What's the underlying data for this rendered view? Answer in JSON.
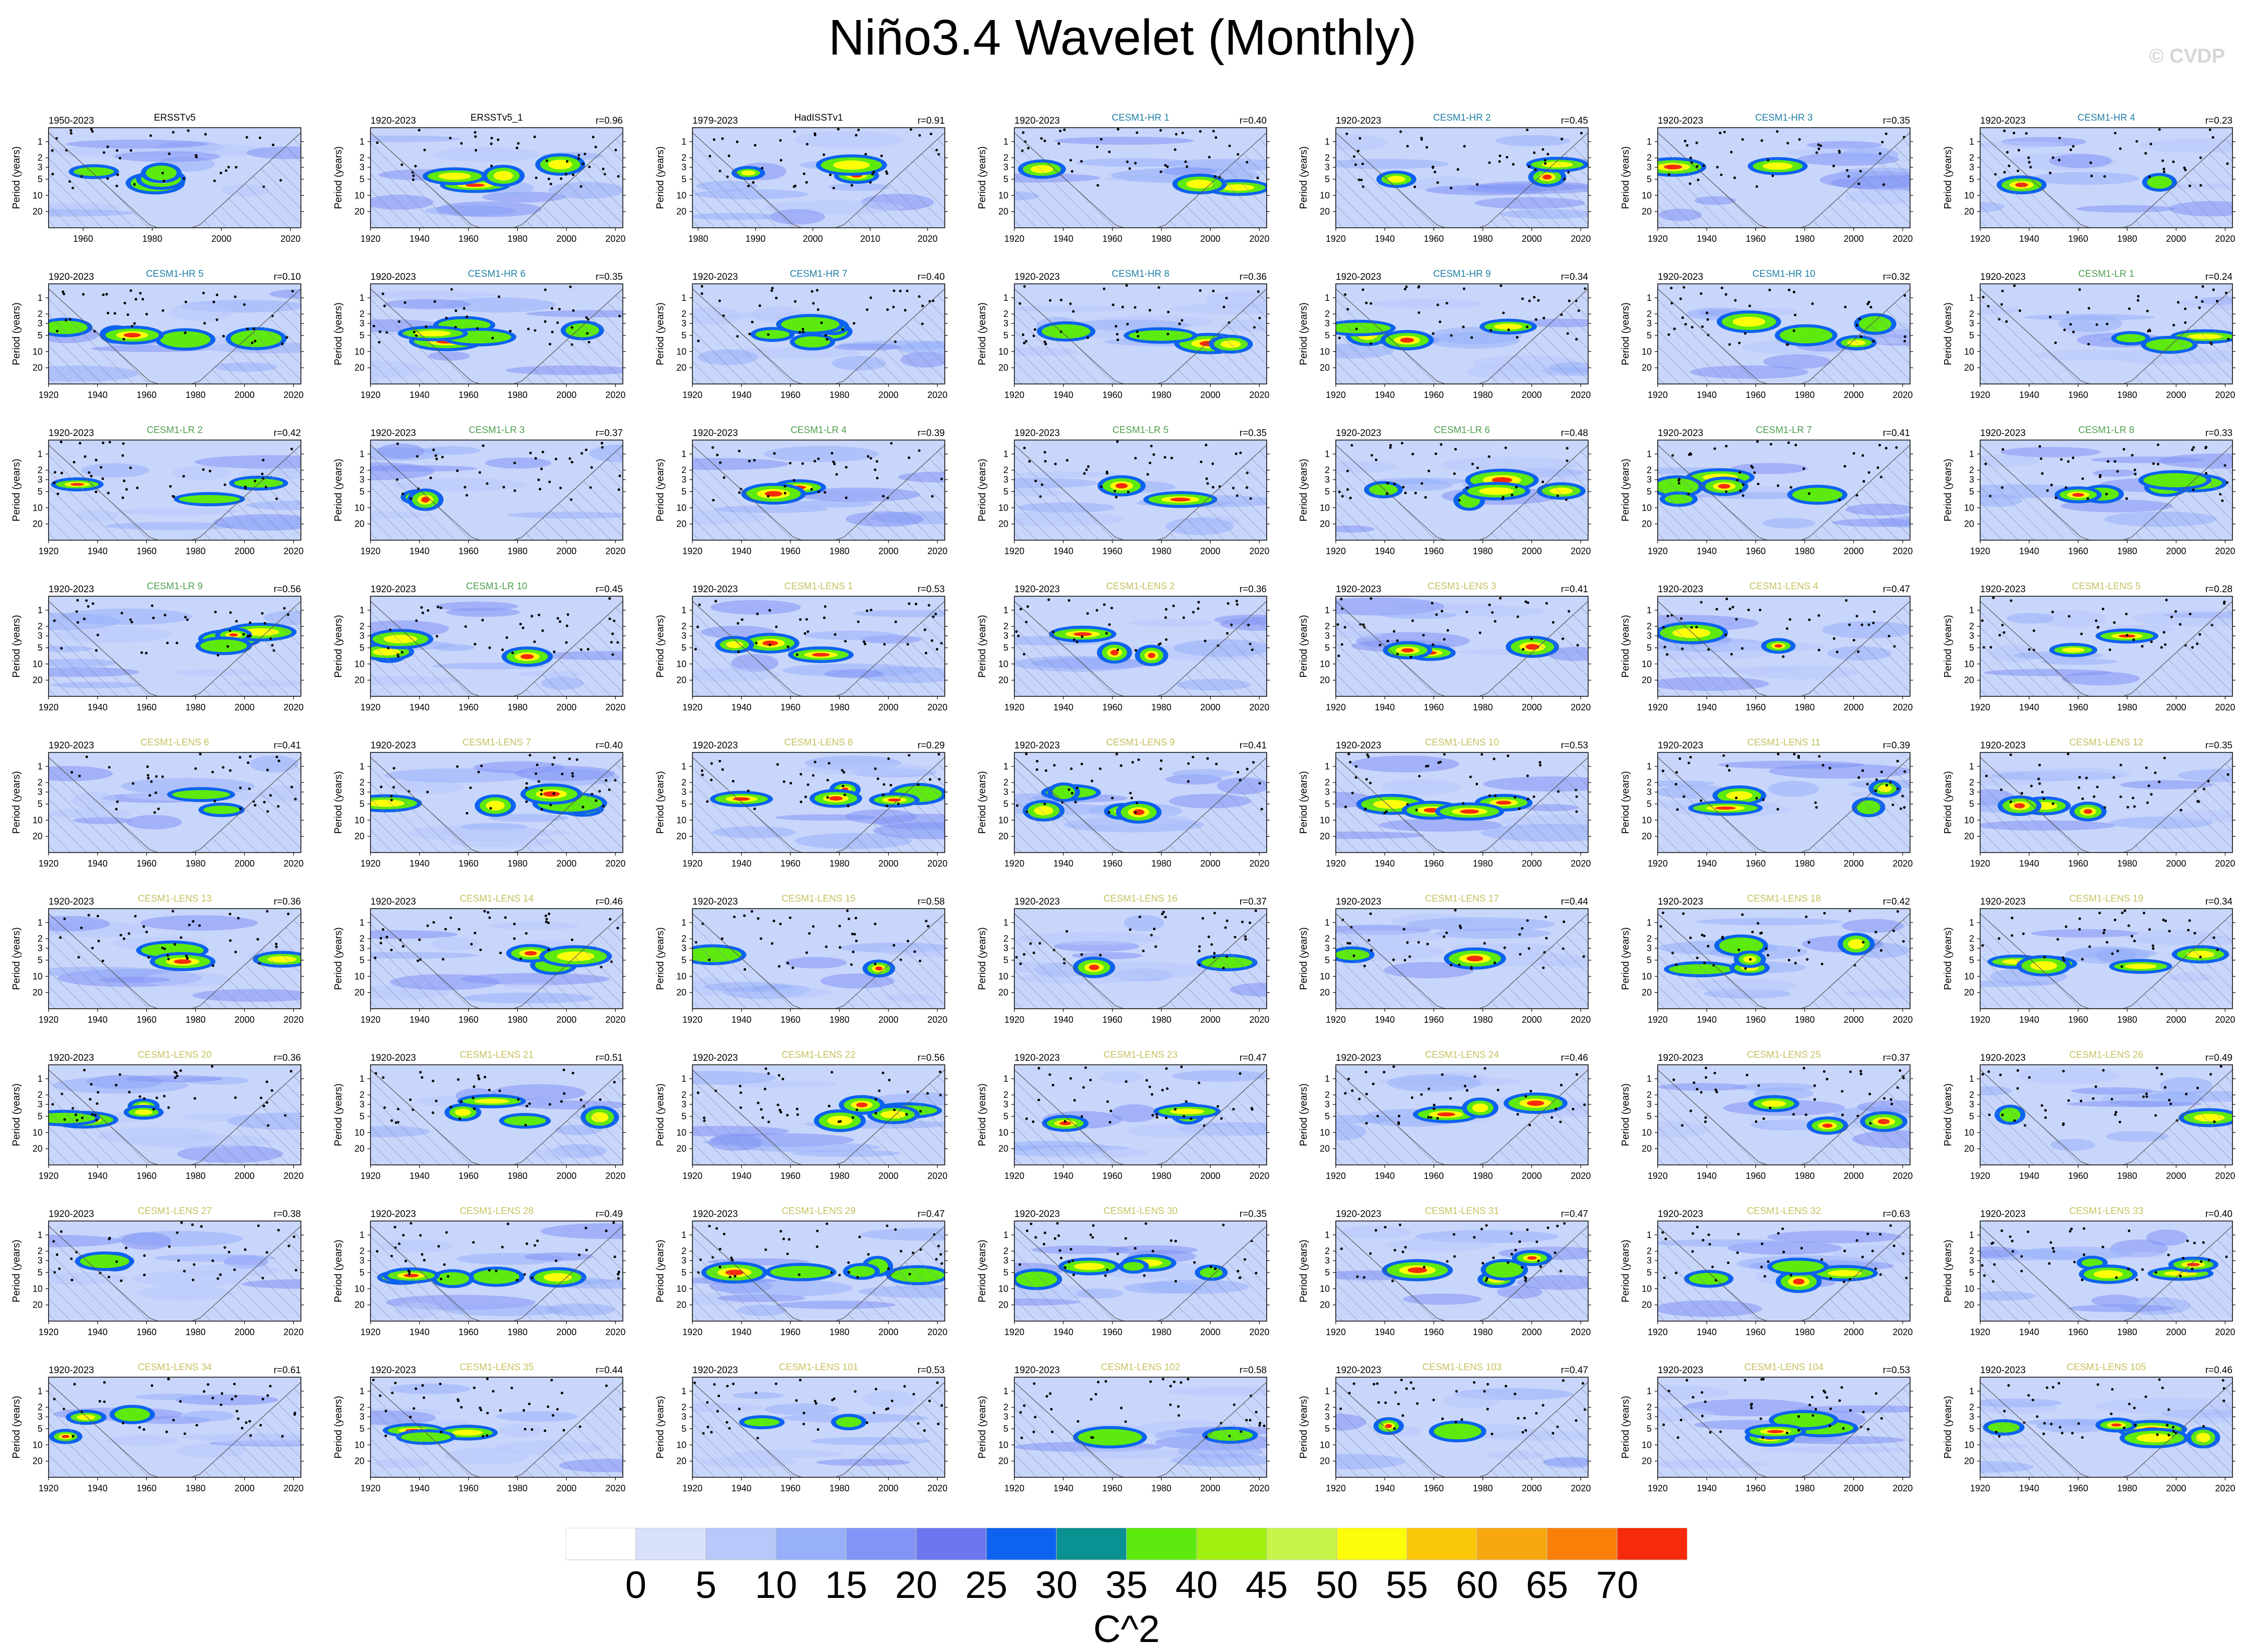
{
  "title": "Niño3.4 Wavelet (Monthly)",
  "watermark": "© CVDP",
  "colors": {
    "background_field": "#c9d6fb",
    "edge": "#000000",
    "title_obs": "#000000",
    "title_hr": "#1f7fa6",
    "title_lr": "#4f9e4f",
    "title_lens": "#c8c060"
  },
  "chart_data": {
    "type": "heatmap",
    "ylabel": "Period (years)",
    "yticks": [
      "1",
      "2",
      "3",
      "5",
      "10",
      "20"
    ],
    "colorbar": {
      "title": "C^2",
      "labels": [
        "0",
        "5",
        "10",
        "15",
        "20",
        "25",
        "30",
        "35",
        "40",
        "45",
        "50",
        "55",
        "60",
        "65",
        "70"
      ],
      "colors": [
        "#ffffff",
        "#d8e0fb",
        "#b8c8fb",
        "#98b0fa",
        "#8294f6",
        "#6b76ef",
        "#0d63ef",
        "#0a9191",
        "#5dea0e",
        "#a0f10d",
        "#c6f649",
        "#fdfd0a",
        "#fcc80a",
        "#f8a70e",
        "#f97f08",
        "#f72b0b"
      ]
    },
    "panels": [
      {
        "period": "1950-2023",
        "name": "ERSSTv5",
        "group": "obs",
        "corr": "",
        "xticks": [
          "1960",
          "1980",
          "2000",
          "2020"
        ],
        "x0": 1950,
        "x1": 2023
      },
      {
        "period": "1920-2023",
        "name": "ERSSTv5_1",
        "group": "obs",
        "corr": "r=0.96",
        "xticks": [
          "1920",
          "1940",
          "1960",
          "1980",
          "2000",
          "2020"
        ],
        "x0": 1920,
        "x1": 2023
      },
      {
        "period": "1979-2023",
        "name": "HadISSTv1",
        "group": "obs",
        "corr": "r=0.91",
        "xticks": [
          "1980",
          "1990",
          "2000",
          "2010",
          "2020"
        ],
        "x0": 1979,
        "x1": 2023
      },
      {
        "period": "1920-2023",
        "name": "CESM1-HR 1",
        "group": "hr",
        "corr": "r=0.40"
      },
      {
        "period": "1920-2023",
        "name": "CESM1-HR 2",
        "group": "hr",
        "corr": "r=0.45"
      },
      {
        "period": "1920-2023",
        "name": "CESM1-HR 3",
        "group": "hr",
        "corr": "r=0.35"
      },
      {
        "period": "1920-2023",
        "name": "CESM1-HR 4",
        "group": "hr",
        "corr": "r=0.23"
      },
      {
        "period": "1920-2023",
        "name": "CESM1-HR 5",
        "group": "hr",
        "corr": "r=0.10"
      },
      {
        "period": "1920-2023",
        "name": "CESM1-HR 6",
        "group": "hr",
        "corr": "r=0.35"
      },
      {
        "period": "1920-2023",
        "name": "CESM1-HR 7",
        "group": "hr",
        "corr": "r=0.40"
      },
      {
        "period": "1920-2023",
        "name": "CESM1-HR 8",
        "group": "hr",
        "corr": "r=0.36"
      },
      {
        "period": "1920-2023",
        "name": "CESM1-HR 9",
        "group": "hr",
        "corr": "r=0.34"
      },
      {
        "period": "1920-2023",
        "name": "CESM1-HR 10",
        "group": "hr",
        "corr": "r=0.32"
      },
      {
        "period": "1920-2023",
        "name": "CESM1-LR 1",
        "group": "lr",
        "corr": "r=0.24"
      },
      {
        "period": "1920-2023",
        "name": "CESM1-LR 2",
        "group": "lr",
        "corr": "r=0.42"
      },
      {
        "period": "1920-2023",
        "name": "CESM1-LR 3",
        "group": "lr",
        "corr": "r=0.37"
      },
      {
        "period": "1920-2023",
        "name": "CESM1-LR 4",
        "group": "lr",
        "corr": "r=0.39"
      },
      {
        "period": "1920-2023",
        "name": "CESM1-LR 5",
        "group": "lr",
        "corr": "r=0.35"
      },
      {
        "period": "1920-2023",
        "name": "CESM1-LR 6",
        "group": "lr",
        "corr": "r=0.48"
      },
      {
        "period": "1920-2023",
        "name": "CESM1-LR 7",
        "group": "lr",
        "corr": "r=0.41"
      },
      {
        "period": "1920-2023",
        "name": "CESM1-LR 8",
        "group": "lr",
        "corr": "r=0.33"
      },
      {
        "period": "1920-2023",
        "name": "CESM1-LR 9",
        "group": "lr",
        "corr": "r=0.56"
      },
      {
        "period": "1920-2023",
        "name": "CESM1-LR 10",
        "group": "lr",
        "corr": "r=0.45"
      },
      {
        "period": "1920-2023",
        "name": "CESM1-LENS 1",
        "group": "lens",
        "corr": "r=0.53"
      },
      {
        "period": "1920-2023",
        "name": "CESM1-LENS 2",
        "group": "lens",
        "corr": "r=0.36"
      },
      {
        "period": "1920-2023",
        "name": "CESM1-LENS 3",
        "group": "lens",
        "corr": "r=0.41"
      },
      {
        "period": "1920-2023",
        "name": "CESM1-LENS 4",
        "group": "lens",
        "corr": "r=0.47"
      },
      {
        "period": "1920-2023",
        "name": "CESM1-LENS 5",
        "group": "lens",
        "corr": "r=0.28"
      },
      {
        "period": "1920-2023",
        "name": "CESM1-LENS 6",
        "group": "lens",
        "corr": "r=0.41"
      },
      {
        "period": "1920-2023",
        "name": "CESM1-LENS 7",
        "group": "lens",
        "corr": "r=0.40"
      },
      {
        "period": "1920-2023",
        "name": "CESM1-LENS 8",
        "group": "lens",
        "corr": "r=0.29"
      },
      {
        "period": "1920-2023",
        "name": "CESM1-LENS 9",
        "group": "lens",
        "corr": "r=0.41"
      },
      {
        "period": "1920-2023",
        "name": "CESM1-LENS 10",
        "group": "lens",
        "corr": "r=0.53"
      },
      {
        "period": "1920-2023",
        "name": "CESM1-LENS 11",
        "group": "lens",
        "corr": "r=0.39"
      },
      {
        "period": "1920-2023",
        "name": "CESM1-LENS 12",
        "group": "lens",
        "corr": "r=0.35"
      },
      {
        "period": "1920-2023",
        "name": "CESM1-LENS 13",
        "group": "lens",
        "corr": "r=0.36"
      },
      {
        "period": "1920-2023",
        "name": "CESM1-LENS 14",
        "group": "lens",
        "corr": "r=0.46"
      },
      {
        "period": "1920-2023",
        "name": "CESM1-LENS 15",
        "group": "lens",
        "corr": "r=0.58"
      },
      {
        "period": "1920-2023",
        "name": "CESM1-LENS 16",
        "group": "lens",
        "corr": "r=0.37"
      },
      {
        "period": "1920-2023",
        "name": "CESM1-LENS 17",
        "group": "lens",
        "corr": "r=0.44"
      },
      {
        "period": "1920-2023",
        "name": "CESM1-LENS 18",
        "group": "lens",
        "corr": "r=0.42"
      },
      {
        "period": "1920-2023",
        "name": "CESM1-LENS 19",
        "group": "lens",
        "corr": "r=0.34"
      },
      {
        "period": "1920-2023",
        "name": "CESM1-LENS 20",
        "group": "lens",
        "corr": "r=0.36"
      },
      {
        "period": "1920-2023",
        "name": "CESM1-LENS 21",
        "group": "lens",
        "corr": "r=0.51"
      },
      {
        "period": "1920-2023",
        "name": "CESM1-LENS 22",
        "group": "lens",
        "corr": "r=0.56"
      },
      {
        "period": "1920-2023",
        "name": "CESM1-LENS 23",
        "group": "lens",
        "corr": "r=0.47"
      },
      {
        "period": "1920-2023",
        "name": "CESM1-LENS 24",
        "group": "lens",
        "corr": "r=0.46"
      },
      {
        "period": "1920-2023",
        "name": "CESM1-LENS 25",
        "group": "lens",
        "corr": "r=0.37"
      },
      {
        "period": "1920-2023",
        "name": "CESM1-LENS 26",
        "group": "lens",
        "corr": "r=0.49"
      },
      {
        "period": "1920-2023",
        "name": "CESM1-LENS 27",
        "group": "lens",
        "corr": "r=0.38"
      },
      {
        "period": "1920-2023",
        "name": "CESM1-LENS 28",
        "group": "lens",
        "corr": "r=0.49"
      },
      {
        "period": "1920-2023",
        "name": "CESM1-LENS 29",
        "group": "lens",
        "corr": "r=0.47"
      },
      {
        "period": "1920-2023",
        "name": "CESM1-LENS 30",
        "group": "lens",
        "corr": "r=0.35"
      },
      {
        "period": "1920-2023",
        "name": "CESM1-LENS 31",
        "group": "lens",
        "corr": "r=0.47"
      },
      {
        "period": "1920-2023",
        "name": "CESM1-LENS 32",
        "group": "lens",
        "corr": "r=0.63"
      },
      {
        "period": "1920-2023",
        "name": "CESM1-LENS 33",
        "group": "lens",
        "corr": "r=0.40"
      },
      {
        "period": "1920-2023",
        "name": "CESM1-LENS 34",
        "group": "lens",
        "corr": "r=0.61"
      },
      {
        "period": "1920-2023",
        "name": "CESM1-LENS 35",
        "group": "lens",
        "corr": "r=0.44"
      },
      {
        "period": "1920-2023",
        "name": "CESM1-LENS 101",
        "group": "lens",
        "corr": "r=0.53"
      },
      {
        "period": "1920-2023",
        "name": "CESM1-LENS 102",
        "group": "lens",
        "corr": "r=0.58"
      },
      {
        "period": "1920-2023",
        "name": "CESM1-LENS 103",
        "group": "lens",
        "corr": "r=0.47"
      },
      {
        "period": "1920-2023",
        "name": "CESM1-LENS 104",
        "group": "lens",
        "corr": "r=0.53"
      },
      {
        "period": "1920-2023",
        "name": "CESM1-LENS 105",
        "group": "lens",
        "corr": "r=0.46"
      }
    ],
    "default_xticks": [
      "1920",
      "1940",
      "1960",
      "1980",
      "2000",
      "2020"
    ],
    "default_x0": 1920,
    "default_x1": 2023
  }
}
